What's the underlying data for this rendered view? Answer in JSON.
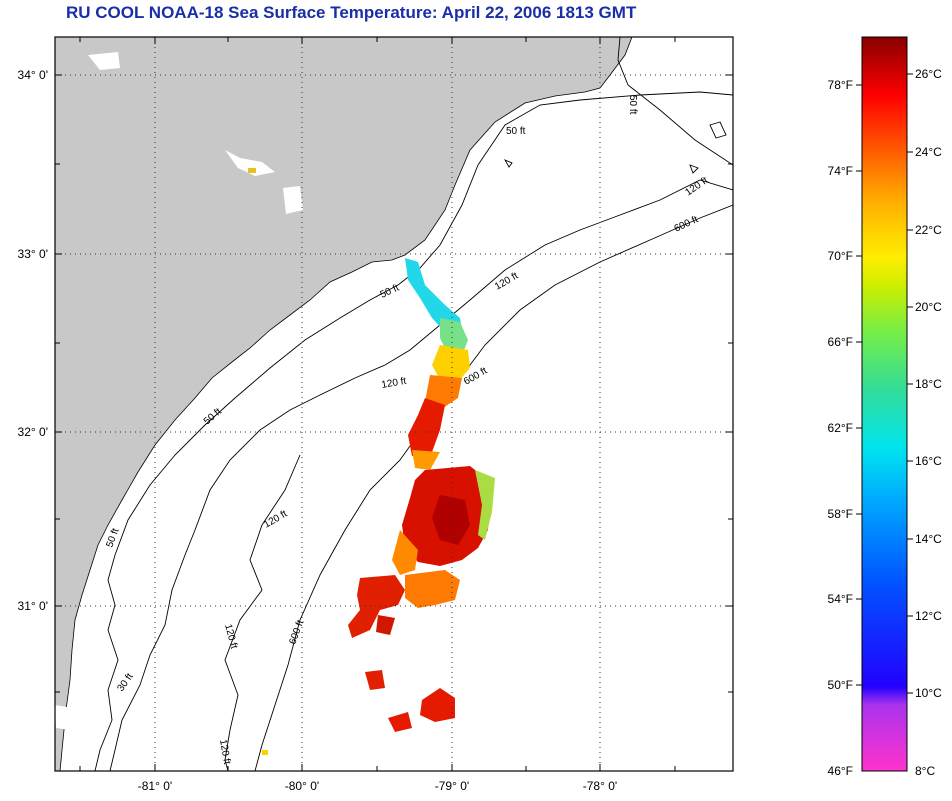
{
  "title": "RU COOL  NOAA-18  Sea Surface Temperature:  April 22, 2006 1813 GMT",
  "map": {
    "lat_labels": [
      "34° 0'",
      "33° 0'",
      "32° 0'",
      "31° 0'"
    ],
    "lon_labels": [
      "-81° 0'",
      "-80° 0'",
      "-79° 0'",
      "-78° 0'"
    ],
    "contour_labels": [
      "50 ft",
      "50 ft",
      "50 ft",
      "50 ft",
      "50 ft",
      "120 ft",
      "120 ft",
      "120 ft",
      "120 ft",
      "120 ft",
      "120 ft",
      "600 ft",
      "600 ft",
      "600 ft",
      "30 ft"
    ],
    "colors": {
      "land": "#c8c8c8",
      "ocean": "#ffffff",
      "grid": "#000000",
      "title": "#1a2ea8"
    }
  },
  "colorbar": {
    "fahrenheit_labels": [
      "78°F",
      "74°F",
      "70°F",
      "66°F",
      "62°F",
      "58°F",
      "54°F",
      "50°F",
      "46°F"
    ],
    "celsius_labels": [
      "26°C",
      "24°C",
      "22°C",
      "20°C",
      "18°C",
      "16°C",
      "14°C",
      "12°C",
      "10°C",
      "8°C"
    ],
    "scale_min_c": 8,
    "scale_max_c": 27
  }
}
